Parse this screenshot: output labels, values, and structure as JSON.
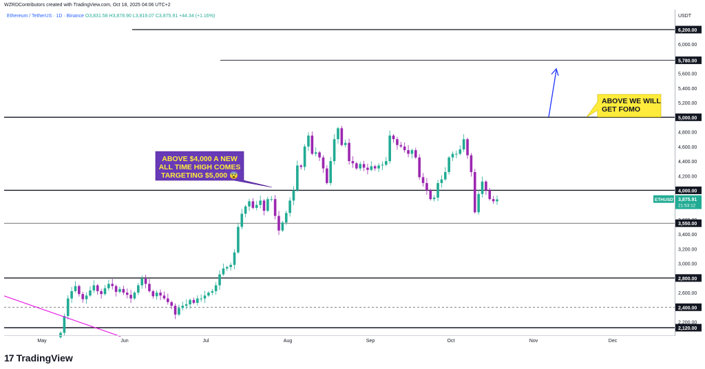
{
  "header": {
    "credit": "WZRDContributors created with TradingView.com, Oct 18, 2025 04:06 UTC+2",
    "legend_symbol": "Ethereum / TetherUS · 1D · Binance",
    "legend_ohlc": "O3,831.58  H3,878.90  L3,819.07  C3,875.91",
    "legend_change": "+44.34 (+1.16%)"
  },
  "brand": {
    "logo_text": "TradingView",
    "logo_mark": "17"
  },
  "colors": {
    "bull": "#22ab94",
    "bear": "#9c27b0",
    "level": "#131722",
    "ma": "#e91ee6",
    "callout_purple": "#673ab7",
    "callout_yellow": "#ffeb3b",
    "arrow": "#1e32ff",
    "badge": "#22ab94"
  },
  "chart_data": {
    "type": "candlestick",
    "symbol": "ETHUSDT",
    "yunit": "USDT",
    "ylim": [
      2000,
      6400
    ],
    "x_ticks": [
      "May",
      "Jun",
      "Jul",
      "Aug",
      "Sep",
      "Oct",
      "Nov",
      "Dec"
    ],
    "y_ticks": [
      "2,200.00",
      "2,600.00",
      "2,800.00",
      "3,000.00",
      "3,200.00",
      "3,400.00",
      "3,600.00",
      "3,800.00",
      "4,000.00",
      "4,200.00",
      "4,400.00",
      "4,600.00",
      "4,800.00",
      "5,000.00",
      "5,200.00",
      "5,400.00",
      "5,600.00",
      "5,800.00",
      "6,000.00",
      "6,200.00"
    ],
    "level_labels": [
      "6,200.00",
      "5,780.00",
      "5,000.00",
      "4,000.00",
      "3,550.00",
      "2,800.00",
      "2,400.00",
      "2,120.00"
    ],
    "horizontal_levels": [
      6200,
      5780,
      5000,
      4000,
      3550,
      2800,
      2400,
      2120
    ],
    "last_price": {
      "symbol_label": "ETHUSDT",
      "price": "3,875.91",
      "countdown": "21:53:12",
      "value": 3875.91
    },
    "closes": [
      2050,
      2280,
      2520,
      2620,
      2690,
      2580,
      2510,
      2560,
      2630,
      2700,
      2620,
      2580,
      2660,
      2720,
      2690,
      2610,
      2650,
      2600,
      2570,
      2520,
      2600,
      2700,
      2790,
      2720,
      2620,
      2550,
      2600,
      2560,
      2520,
      2470,
      2420,
      2300,
      2390,
      2420,
      2440,
      2500,
      2460,
      2520,
      2520,
      2560,
      2600,
      2620,
      2700,
      2850,
      2930,
      2950,
      2980,
      3150,
      3500,
      3680,
      3780,
      3850,
      3760,
      3800,
      3860,
      3720,
      3880,
      3880,
      3650,
      3450,
      3560,
      3690,
      3860,
      4000,
      4340,
      4320,
      4600,
      4750,
      4500,
      4520,
      4450,
      4300,
      4100,
      4400,
      4700,
      4850,
      4620,
      4650,
      4400,
      4370,
      4300,
      4360,
      4310,
      4280,
      4330,
      4300,
      4340,
      4350,
      4400,
      4750,
      4700,
      4620,
      4600,
      4550,
      4500,
      4550,
      4450,
      4180,
      4100,
      4000,
      3880,
      3900,
      4100,
      4150,
      4250,
      4450,
      4500,
      4500,
      4560,
      4700,
      4480,
      4250,
      3700,
      3950,
      4120,
      4000,
      3880,
      3850,
      3875.91
    ],
    "callouts": [
      {
        "text": "ABOVE $4,000 A NEW ALL TIME HIGH COMES TARGETING $5,000 😨"
      },
      {
        "text": "ABOVE WE WILL GET FOMO"
      }
    ]
  }
}
